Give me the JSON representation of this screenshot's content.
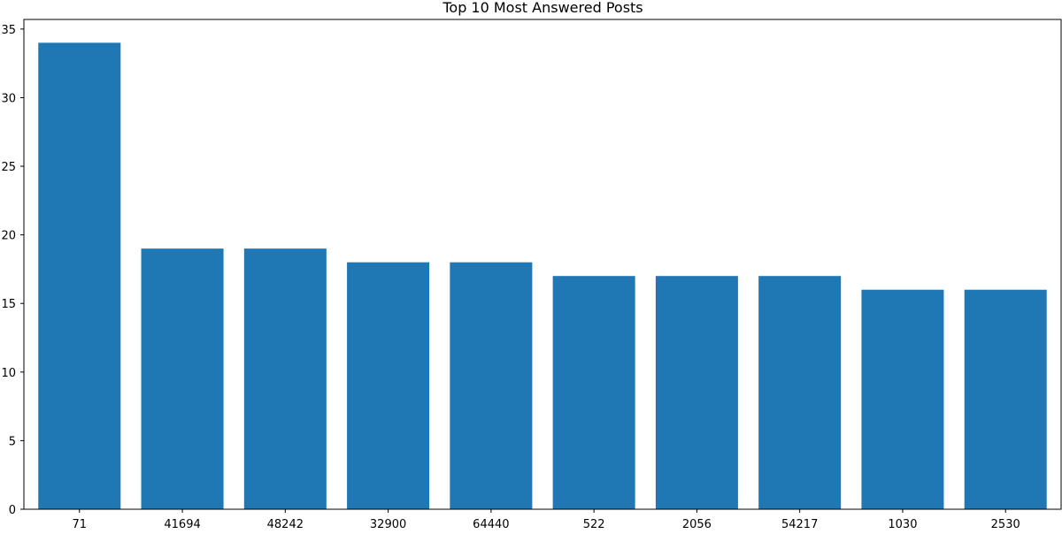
{
  "chart_data": {
    "type": "bar",
    "title": "Top 10 Most Answered Posts",
    "xlabel": "",
    "ylabel": "",
    "categories": [
      "71",
      "41694",
      "48242",
      "32900",
      "64440",
      "522",
      "2056",
      "54217",
      "1030",
      "2530"
    ],
    "values": [
      34,
      19,
      19,
      18,
      18,
      17,
      17,
      17,
      16,
      16
    ],
    "ylim": [
      0,
      35.7
    ],
    "yticks": [
      0,
      5,
      10,
      15,
      20,
      25,
      30,
      35
    ],
    "grid": false,
    "legend": "none",
    "bar_color": "#1f77b4"
  }
}
